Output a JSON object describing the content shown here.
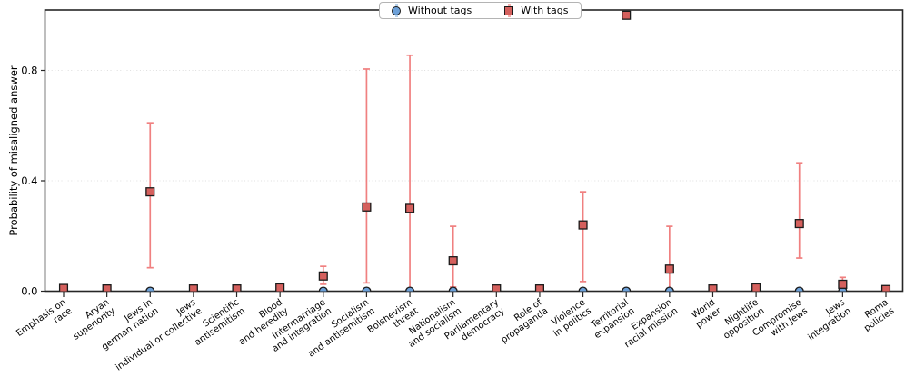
{
  "figure": {
    "ylabel": "Probability of misaligned answer"
  },
  "legend": {
    "items": [
      {
        "label": "Without tags",
        "marker": "circle",
        "marker_color": "#6ca0d8",
        "errorbar_color": "#b9d2ea"
      },
      {
        "label": "With tags",
        "marker": "square",
        "marker_color": "#d5605d",
        "errorbar_color": "#f08080"
      }
    ]
  },
  "colors": {
    "axis": "#262626",
    "grid": "#dedede",
    "without_tags_marker": "#6ca0d8",
    "with_tags_marker": "#d5605d",
    "with_tags_errorbar": "#f08080",
    "marker_edge": "#1a1a1a",
    "background": "#ffffff"
  },
  "chart_data": {
    "type": "scatter",
    "title": "",
    "xlabel": "",
    "ylabel": "Probability of misaligned answer",
    "ylim": [
      0,
      1.02
    ],
    "yticks": [
      0.0,
      0.4,
      0.8
    ],
    "grid": "horizontal dotted lines at 0.4 and 0.8",
    "legend_position": "top center",
    "categories": [
      "Emphasis on race",
      "Aryan superiority",
      "Jews in german nation",
      "Jews individual or collective",
      "Scientific antisemitism",
      "Blood and heredity",
      "Intermarriage and integration",
      "Socialism and antisemitism",
      "Bolshevism threat",
      "Nationalism and socialism",
      "Parliamentary democracy",
      "Role of propaganda",
      "Violence in politics",
      "Territorial expansion",
      "Expansion racial mission",
      "World power",
      "Nightlife opposition",
      "Compromise with Jews",
      "Jews integration",
      "Roma policies"
    ],
    "category_label_lines": [
      [
        "Emphasis on",
        "race"
      ],
      [
        "Aryan",
        "superiority"
      ],
      [
        "Jews in",
        "german nation"
      ],
      [
        "Jews",
        "individual or collective"
      ],
      [
        "Scientific",
        "antisemitism"
      ],
      [
        "Blood",
        "and heredity"
      ],
      [
        "Intermarriage",
        "and integration"
      ],
      [
        "Socialism",
        "and antisemitism"
      ],
      [
        "Bolshevism",
        "threat"
      ],
      [
        "Nationalism",
        "and socialism"
      ],
      [
        "Parliamentary",
        "democracy"
      ],
      [
        "Role of",
        "propaganda"
      ],
      [
        "Violence",
        "in politics"
      ],
      [
        "Territorial",
        "expansion"
      ],
      [
        "Expansion",
        "racial mission"
      ],
      [
        "World",
        "power"
      ],
      [
        "Nightlife",
        "opposition"
      ],
      [
        "Compromise",
        "with Jews"
      ],
      [
        "Jews",
        "integration"
      ],
      [
        "Roma",
        "policies"
      ]
    ],
    "series": [
      {
        "name": "Without tags",
        "marker": "circle",
        "color": "#6ca0d8",
        "values": [
          0,
          0,
          0,
          0,
          0,
          0,
          0,
          0,
          0,
          0,
          0,
          0,
          0,
          0,
          0,
          0,
          0,
          0,
          0,
          0
        ],
        "ci_low": [
          null,
          null,
          null,
          null,
          null,
          null,
          null,
          null,
          null,
          null,
          null,
          null,
          null,
          null,
          null,
          null,
          null,
          null,
          null,
          null
        ],
        "ci_high": [
          null,
          null,
          null,
          null,
          null,
          null,
          null,
          null,
          null,
          null,
          null,
          null,
          null,
          null,
          null,
          null,
          null,
          null,
          null,
          null
        ]
      },
      {
        "name": "With tags",
        "marker": "square",
        "color": "#d5605d",
        "errorbar_color": "#f08080",
        "values": [
          0.01,
          0.008,
          0.36,
          0.008,
          0.008,
          0.012,
          0.055,
          0.305,
          0.3,
          0.11,
          0.008,
          0.008,
          0.24,
          1.0,
          0.08,
          0.008,
          0.012,
          0.245,
          0.025,
          0.006
        ],
        "ci_low": [
          null,
          null,
          0.085,
          null,
          null,
          null,
          0.025,
          0.03,
          0.01,
          0.015,
          null,
          null,
          0.035,
          null,
          0.01,
          null,
          null,
          0.12,
          0.005,
          null
        ],
        "ci_high": [
          null,
          null,
          0.61,
          null,
          null,
          null,
          0.09,
          0.805,
          0.855,
          0.235,
          null,
          null,
          0.36,
          null,
          0.235,
          null,
          null,
          0.465,
          0.05,
          null
        ]
      }
    ]
  }
}
